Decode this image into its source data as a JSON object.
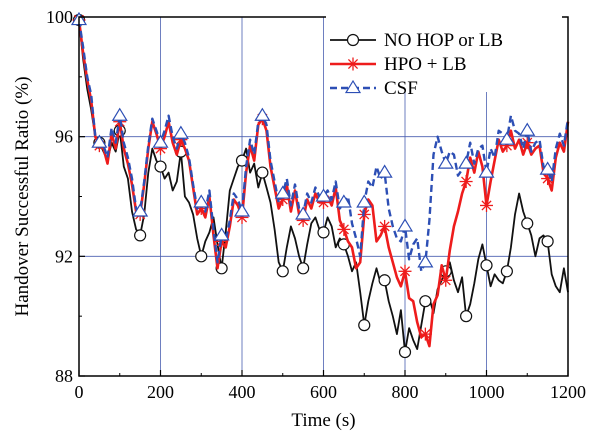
{
  "chart_data": {
    "type": "line",
    "xlabel": "Time (s)",
    "ylabel": "Handover Successful Ratio (%)",
    "xlim": [
      0,
      1200
    ],
    "ylim": [
      88,
      100
    ],
    "xticks": [
      0,
      200,
      400,
      600,
      800,
      1000,
      1200
    ],
    "yticks": [
      88,
      92,
      96,
      100
    ],
    "grid": true,
    "legend_position": "top-right",
    "colors": {
      "grid": "#4a5fb0",
      "axis": "#000000"
    },
    "series": [
      {
        "name": "NO HOP or LB",
        "color": "#111111",
        "dash": "solid",
        "marker": "circle",
        "x": [
          0,
          10,
          20,
          30,
          40,
          50,
          60,
          70,
          80,
          90,
          100,
          110,
          120,
          130,
          140,
          150,
          160,
          170,
          180,
          190,
          200,
          210,
          220,
          230,
          240,
          250,
          260,
          270,
          280,
          290,
          300,
          310,
          320,
          330,
          340,
          350,
          360,
          370,
          380,
          390,
          400,
          410,
          420,
          430,
          440,
          450,
          460,
          470,
          480,
          490,
          500,
          510,
          520,
          530,
          540,
          550,
          560,
          570,
          580,
          590,
          600,
          610,
          620,
          630,
          640,
          650,
          660,
          670,
          680,
          690,
          700,
          710,
          720,
          730,
          740,
          750,
          760,
          770,
          780,
          790,
          800,
          810,
          820,
          830,
          840,
          850,
          860,
          870,
          880,
          890,
          900,
          910,
          920,
          930,
          940,
          950,
          960,
          970,
          980,
          990,
          1000,
          1010,
          1020,
          1030,
          1040,
          1050,
          1060,
          1070,
          1080,
          1090,
          1100,
          1110,
          1120,
          1130,
          1140,
          1150,
          1160,
          1170,
          1180,
          1190,
          1200
        ],
        "y": [
          99.9,
          98.6,
          97.6,
          96.9,
          96.0,
          95.8,
          95.5,
          95.2,
          95.8,
          95.5,
          96.2,
          95.0,
          94.6,
          93.5,
          92.9,
          92.7,
          93.4,
          94.8,
          95.6,
          95.2,
          95.0,
          94.6,
          94.8,
          94.2,
          94.5,
          95.5,
          94.0,
          93.8,
          93.4,
          92.6,
          92.0,
          92.5,
          92.8,
          93.3,
          92.4,
          91.6,
          92.8,
          94.2,
          94.6,
          95.0,
          95.2,
          95.6,
          94.8,
          95.1,
          94.3,
          94.8,
          94.3,
          93.8,
          92.9,
          91.8,
          91.5,
          92.3,
          93.0,
          92.6,
          92.0,
          91.6,
          92.4,
          93.1,
          93.3,
          92.9,
          92.8,
          93.3,
          93.0,
          92.3,
          92.6,
          92.4,
          92.0,
          91.5,
          91.8,
          90.8,
          89.7,
          90.5,
          91.1,
          91.6,
          91.1,
          91.2,
          90.5,
          90.0,
          89.4,
          90.2,
          88.8,
          89.6,
          89.2,
          88.9,
          89.7,
          90.5,
          90.6,
          90.1,
          90.9,
          91.2,
          91.5,
          91.8,
          91.2,
          90.8,
          91.3,
          90.0,
          90.4,
          91.1,
          91.9,
          92.4,
          91.7,
          91.0,
          91.4,
          91.2,
          91.1,
          91.5,
          92.3,
          93.4,
          94.1,
          93.5,
          93.1,
          92.7,
          92.0,
          92.6,
          92.7,
          92.5,
          91.4,
          91.0,
          90.8,
          91.6,
          90.8
        ],
        "markers_at": [
          0,
          50,
          100,
          150,
          200,
          250,
          300,
          350,
          400,
          450,
          500,
          550,
          600,
          650,
          700,
          750,
          800,
          850,
          900,
          950,
          1000,
          1050,
          1100,
          1150
        ]
      },
      {
        "name": "HPO + LB",
        "color": "#ee1c1c",
        "dash": "solid",
        "marker": "star",
        "x": [
          0,
          10,
          20,
          30,
          40,
          50,
          60,
          70,
          80,
          90,
          100,
          110,
          120,
          130,
          140,
          150,
          160,
          170,
          180,
          190,
          200,
          210,
          220,
          230,
          240,
          250,
          260,
          270,
          280,
          290,
          300,
          310,
          320,
          330,
          340,
          350,
          360,
          370,
          380,
          390,
          400,
          410,
          420,
          430,
          440,
          450,
          460,
          470,
          480,
          490,
          500,
          510,
          520,
          530,
          540,
          550,
          560,
          570,
          580,
          590,
          600,
          610,
          620,
          630,
          640,
          650,
          660,
          670,
          680,
          690,
          700,
          710,
          720,
          730,
          740,
          750,
          760,
          770,
          780,
          790,
          800,
          810,
          820,
          830,
          840,
          850,
          860,
          870,
          880,
          890,
          900,
          910,
          920,
          930,
          940,
          950,
          960,
          970,
          980,
          990,
          1000,
          1010,
          1020,
          1030,
          1040,
          1050,
          1060,
          1070,
          1080,
          1090,
          1100,
          1110,
          1120,
          1130,
          1140,
          1150,
          1160,
          1170,
          1180,
          1190,
          1200
        ],
        "y": [
          99.9,
          98.8,
          97.9,
          97.2,
          96.0,
          95.7,
          95.6,
          95.1,
          96.1,
          95.6,
          96.5,
          95.6,
          95.1,
          94.4,
          93.5,
          93.4,
          94.4,
          95.6,
          96.5,
          96.1,
          95.6,
          96.0,
          96.5,
          95.8,
          95.4,
          95.9,
          95.6,
          95.2,
          94.3,
          93.4,
          93.6,
          93.3,
          94.0,
          92.7,
          91.6,
          92.5,
          92.3,
          93.0,
          93.9,
          93.7,
          93.3,
          94.8,
          95.7,
          95.2,
          96.4,
          96.6,
          96.2,
          95.0,
          94.3,
          93.6,
          93.9,
          94.4,
          93.5,
          94.2,
          93.4,
          93.2,
          93.9,
          93.6,
          94.1,
          93.8,
          93.8,
          94.0,
          93.7,
          94.3,
          93.2,
          92.9,
          92.5,
          92.3,
          91.6,
          91.8,
          93.4,
          93.9,
          93.7,
          92.5,
          92.7,
          93.0,
          92.3,
          91.8,
          91.3,
          91.0,
          91.5,
          90.6,
          90.5,
          89.8,
          89.3,
          89.4,
          89.0,
          90.4,
          90.7,
          91.7,
          91.2,
          92.2,
          93.0,
          93.5,
          94.1,
          94.5,
          95.3,
          94.8,
          95.5,
          95.0,
          93.7,
          94.5,
          95.2,
          95.9,
          95.5,
          95.7,
          96.2,
          95.6,
          95.9,
          95.4,
          95.8,
          95.4,
          95.6,
          95.7,
          94.8,
          94.6,
          94.2,
          95.3,
          95.8,
          95.5,
          96.5
        ],
        "markers_at": [
          0,
          50,
          100,
          150,
          200,
          250,
          300,
          350,
          400,
          450,
          500,
          550,
          600,
          650,
          700,
          750,
          800,
          850,
          900,
          950,
          1000,
          1050,
          1100,
          1150
        ]
      },
      {
        "name": "CSF",
        "color": "#2d4fb5",
        "dash": "dashed",
        "marker": "triangle",
        "x": [
          0,
          10,
          20,
          30,
          40,
          50,
          60,
          70,
          80,
          90,
          100,
          110,
          120,
          130,
          140,
          150,
          160,
          170,
          180,
          190,
          200,
          210,
          220,
          230,
          240,
          250,
          260,
          270,
          280,
          290,
          300,
          310,
          320,
          330,
          340,
          350,
          360,
          370,
          380,
          390,
          400,
          410,
          420,
          430,
          440,
          450,
          460,
          470,
          480,
          490,
          500,
          510,
          520,
          530,
          540,
          550,
          560,
          570,
          580,
          590,
          600,
          610,
          620,
          630,
          640,
          650,
          660,
          670,
          680,
          690,
          700,
          710,
          720,
          730,
          740,
          750,
          760,
          770,
          780,
          790,
          800,
          810,
          820,
          830,
          840,
          850,
          860,
          870,
          880,
          890,
          900,
          910,
          920,
          930,
          940,
          950,
          960,
          970,
          980,
          990,
          1000,
          1010,
          1020,
          1030,
          1040,
          1050,
          1060,
          1070,
          1080,
          1090,
          1100,
          1110,
          1120,
          1130,
          1140,
          1150,
          1160,
          1170,
          1180,
          1190,
          1200
        ],
        "y": [
          99.9,
          99.0,
          98.0,
          97.4,
          96.0,
          95.8,
          95.7,
          95.3,
          96.3,
          95.8,
          96.7,
          95.8,
          95.3,
          94.6,
          93.6,
          93.5,
          94.5,
          95.7,
          96.6,
          96.2,
          95.8,
          96.2,
          96.7,
          96.0,
          95.6,
          96.1,
          95.8,
          95.3,
          94.4,
          93.6,
          93.8,
          93.5,
          94.2,
          92.9,
          91.8,
          92.7,
          92.5,
          93.2,
          94.1,
          93.9,
          93.5,
          95.0,
          95.9,
          95.4,
          96.5,
          96.7,
          96.4,
          95.2,
          94.5,
          93.8,
          94.1,
          94.6,
          93.7,
          94.4,
          93.6,
          93.4,
          94.1,
          93.8,
          94.3,
          94.0,
          94.0,
          94.2,
          93.9,
          94.5,
          93.6,
          93.8,
          94.0,
          93.1,
          92.6,
          92.0,
          93.8,
          94.5,
          94.3,
          95.0,
          94.6,
          94.8,
          93.6,
          93.0,
          92.6,
          92.5,
          93.0,
          91.9,
          92.4,
          92.6,
          91.5,
          91.8,
          93.2,
          95.4,
          96.0,
          95.5,
          95.1,
          95.5,
          95.4,
          94.7,
          94.9,
          95.1,
          95.8,
          95.1,
          95.6,
          95.7,
          94.8,
          95.6,
          95.3,
          96.2,
          96.1,
          95.9,
          96.7,
          96.2,
          96.1,
          95.6,
          96.2,
          95.5,
          95.8,
          95.9,
          95.0,
          94.9,
          94.5,
          95.6,
          96.1,
          95.7,
          96.6
        ],
        "markers_at": [
          0,
          50,
          100,
          150,
          200,
          250,
          300,
          350,
          400,
          450,
          500,
          550,
          600,
          650,
          700,
          750,
          800,
          850,
          900,
          950,
          1000,
          1050,
          1100,
          1150
        ]
      }
    ]
  }
}
